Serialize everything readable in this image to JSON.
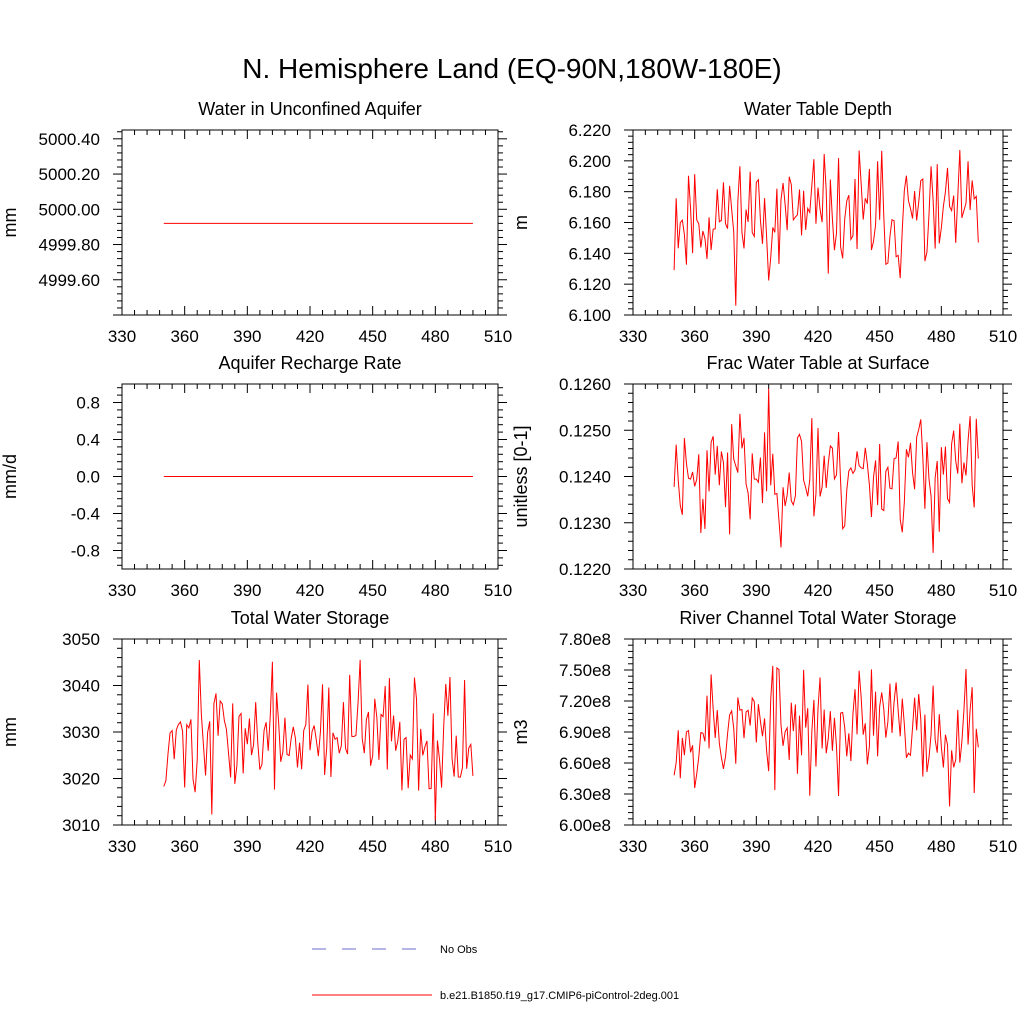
{
  "title": "N. Hemisphere Land (EQ-90N,180W-180E)",
  "colors": {
    "series": "#ff0000",
    "obs": "#6b6bcc",
    "axis": "#000000"
  },
  "legend": [
    {
      "label": "No Obs",
      "style": "dashed",
      "color": "#6b6bcc"
    },
    {
      "label": "b.e21.B1850.f19_g17.CMIP6-piControl-2deg.001",
      "style": "solid",
      "color": "#ff0000"
    }
  ],
  "chart_data": [
    {
      "type": "line",
      "title": "Water in Unconfined Aquifer",
      "ylabel": "mm",
      "xlim": [
        330,
        510
      ],
      "ylim": [
        4999.4,
        5000.45
      ],
      "xticks": [
        330,
        360,
        390,
        420,
        450,
        480,
        510
      ],
      "xtick_labels": [
        "330",
        "360",
        "390",
        "420",
        "450",
        "480",
        "510"
      ],
      "yticks": [
        4999.6,
        4999.8,
        5000.0,
        5000.2,
        5000.4
      ],
      "ytick_labels": [
        "4999.60",
        "4999.80",
        "5000.00",
        "5000.20",
        "5000.40"
      ],
      "x_start": 350,
      "x_end": 498,
      "series": [
        {
          "name": "b.e21.B1850.f19_g17.CMIP6-piControl-2deg.001",
          "constant": 4999.92
        }
      ]
    },
    {
      "type": "line",
      "title": "Water Table Depth",
      "ylabel": "m",
      "xlim": [
        330,
        510
      ],
      "ylim": [
        6.1,
        6.22
      ],
      "xticks": [
        330,
        360,
        390,
        420,
        450,
        480,
        510
      ],
      "xtick_labels": [
        "330",
        "360",
        "390",
        "420",
        "450",
        "480",
        "510"
      ],
      "yticks": [
        6.1,
        6.12,
        6.14,
        6.16,
        6.18,
        6.2,
        6.22
      ],
      "ytick_labels": [
        "6.100",
        "6.120",
        "6.140",
        "6.160",
        "6.180",
        "6.200",
        "6.220"
      ],
      "x_start": 350,
      "x_end": 498,
      "series": [
        {
          "name": "b.e21.B1850.f19_g17.CMIP6-piControl-2deg.001",
          "min": 6.106,
          "max": 6.207,
          "mean": 6.155,
          "seed": 11
        }
      ]
    },
    {
      "type": "line",
      "title": "Aquifer Recharge Rate",
      "ylabel": "mm/d",
      "xlim": [
        330,
        510
      ],
      "ylim": [
        -1.0,
        1.0
      ],
      "xticks": [
        330,
        360,
        390,
        420,
        450,
        480,
        510
      ],
      "xtick_labels": [
        "330",
        "360",
        "390",
        "420",
        "450",
        "480",
        "510"
      ],
      "yticks": [
        -0.8,
        -0.4,
        0.0,
        0.4,
        0.8
      ],
      "ytick_labels": [
        "-0.8",
        "-0.4",
        "0.0",
        "0.4",
        "0.8"
      ],
      "x_start": 350,
      "x_end": 498,
      "series": [
        {
          "name": "b.e21.B1850.f19_g17.CMIP6-piControl-2deg.001",
          "constant": 0.0
        }
      ]
    },
    {
      "type": "line",
      "title": "Frac Water Table at Surface",
      "ylabel": "unitless [0-1]",
      "xlim": [
        330,
        510
      ],
      "ylim": [
        0.122,
        0.126
      ],
      "xticks": [
        330,
        360,
        390,
        420,
        450,
        480,
        510
      ],
      "xtick_labels": [
        "330",
        "360",
        "390",
        "420",
        "450",
        "480",
        "510"
      ],
      "yticks": [
        0.122,
        0.123,
        0.124,
        0.125,
        0.126
      ],
      "ytick_labels": [
        "0.1220",
        "0.1230",
        "0.1240",
        "0.1250",
        "0.1260"
      ],
      "x_start": 350,
      "x_end": 498,
      "series": [
        {
          "name": "b.e21.B1850.f19_g17.CMIP6-piControl-2deg.001",
          "min": 0.12235,
          "max": 0.1259,
          "mean": 0.1242,
          "seed": 23
        }
      ]
    },
    {
      "type": "line",
      "title": "Total Water Storage",
      "ylabel": "mm",
      "xlim": [
        330,
        510
      ],
      "ylim": [
        3010,
        3050
      ],
      "xticks": [
        330,
        360,
        390,
        420,
        450,
        480,
        510
      ],
      "xtick_labels": [
        "330",
        "360",
        "390",
        "420",
        "450",
        "480",
        "510"
      ],
      "yticks": [
        3010,
        3020,
        3030,
        3040,
        3050
      ],
      "ytick_labels": [
        "3010",
        "3020",
        "3030",
        "3040",
        "3050"
      ],
      "x_start": 350,
      "x_end": 498,
      "series": [
        {
          "name": "b.e21.B1850.f19_g17.CMIP6-piControl-2deg.001",
          "min": 3011,
          "max": 3045.5,
          "mean": 3027,
          "seed": 37
        }
      ]
    },
    {
      "type": "line",
      "title": "River Channel Total Water Storage",
      "ylabel": "m3",
      "xlim": [
        330,
        510
      ],
      "ylim": [
        600000000,
        780000000
      ],
      "xticks": [
        330,
        360,
        390,
        420,
        450,
        480,
        510
      ],
      "xtick_labels": [
        "330",
        "360",
        "390",
        "420",
        "450",
        "480",
        "510"
      ],
      "yticks": [
        600000000,
        630000000,
        660000000,
        690000000,
        720000000,
        750000000,
        780000000
      ],
      "ytick_labels": [
        "6.00e8",
        "6.30e8",
        "6.60e8",
        "6.90e8",
        "7.20e8",
        "7.50e8",
        "7.80e8"
      ],
      "x_start": 350,
      "x_end": 498,
      "series": [
        {
          "name": "b.e21.B1850.f19_g17.CMIP6-piControl-2deg.001",
          "min": 618000000,
          "max": 754000000,
          "mean": 680000000,
          "seed": 53
        }
      ]
    }
  ]
}
